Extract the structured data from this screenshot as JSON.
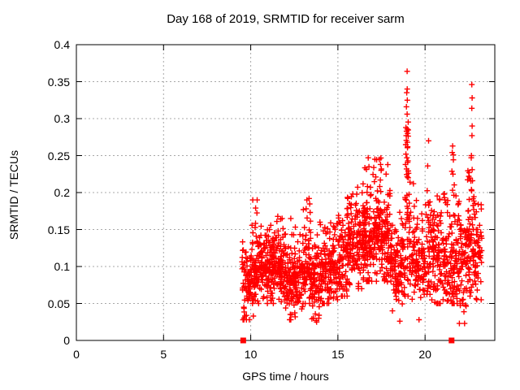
{
  "chart_data": {
    "type": "scatter",
    "title": "Day 168 of 2019, SRMTID for receiver sarm",
    "xlabel": "GPS time / hours",
    "ylabel": "SRMTID / TECUs",
    "xlim": [
      0,
      24
    ],
    "ylim": [
      0,
      0.4
    ],
    "xticks": [
      {
        "v": 0,
        "label": "0"
      },
      {
        "v": 5,
        "label": "5"
      },
      {
        "v": 10,
        "label": "10"
      },
      {
        "v": 15,
        "label": "15"
      },
      {
        "v": 20,
        "label": "20"
      }
    ],
    "yticks": [
      {
        "v": 0,
        "label": "0"
      },
      {
        "v": 0.05,
        "label": "0.05"
      },
      {
        "v": 0.1,
        "label": "0.1"
      },
      {
        "v": 0.15,
        "label": "0.15"
      },
      {
        "v": 0.2,
        "label": "0.2"
      },
      {
        "v": 0.25,
        "label": "0.25"
      },
      {
        "v": 0.3,
        "label": "0.3"
      },
      {
        "v": 0.35,
        "label": "0.35"
      },
      {
        "v": 0.4,
        "label": "0.4"
      }
    ],
    "grid": true,
    "legend_position": "none",
    "colors": {
      "marker": "#ff0000",
      "grid": "#a8a8a8",
      "axis": "#000000",
      "text": "#000000",
      "background": "#ffffff"
    },
    "marker": {
      "shape": "plus",
      "color": "#ff0000",
      "size": 7
    },
    "series": [
      {
        "name": "SRMTID",
        "marker": "plus",
        "color": "#ff0000",
        "representation": "density_bins",
        "note": "Dense scatter (~2000 pts) from 9.5h to 23.25h summarized as bins: [x_start, x_end, count, y_center, y_sigma, y_min, y_max]; distinctive extreme points listed explicitly in outliers.",
        "bins": [
          [
            9.5,
            10.0,
            70,
            0.082,
            0.027,
            0.028,
            0.15
          ],
          [
            10.0,
            10.5,
            80,
            0.1,
            0.027,
            0.05,
            0.19
          ],
          [
            10.5,
            11.0,
            80,
            0.1,
            0.025,
            0.05,
            0.165
          ],
          [
            11.0,
            11.5,
            80,
            0.095,
            0.024,
            0.05,
            0.16
          ],
          [
            11.5,
            12.0,
            80,
            0.093,
            0.025,
            0.045,
            0.17
          ],
          [
            12.0,
            12.5,
            75,
            0.085,
            0.024,
            0.028,
            0.15
          ],
          [
            12.5,
            13.0,
            75,
            0.085,
            0.025,
            0.025,
            0.155
          ],
          [
            13.0,
            13.5,
            75,
            0.098,
            0.028,
            0.05,
            0.2
          ],
          [
            13.5,
            14.0,
            70,
            0.085,
            0.027,
            0.025,
            0.16
          ],
          [
            14.0,
            14.5,
            70,
            0.093,
            0.025,
            0.05,
            0.165
          ],
          [
            14.5,
            15.0,
            70,
            0.1,
            0.025,
            0.055,
            0.17
          ],
          [
            15.0,
            15.5,
            70,
            0.11,
            0.027,
            0.06,
            0.19
          ],
          [
            15.5,
            16.0,
            75,
            0.118,
            0.029,
            0.06,
            0.21
          ],
          [
            16.0,
            16.5,
            80,
            0.13,
            0.03,
            0.07,
            0.22
          ],
          [
            16.5,
            17.0,
            85,
            0.14,
            0.032,
            0.08,
            0.24
          ],
          [
            17.0,
            17.5,
            85,
            0.145,
            0.032,
            0.08,
            0.25
          ],
          [
            17.5,
            18.0,
            80,
            0.135,
            0.033,
            0.07,
            0.24
          ],
          [
            18.0,
            18.5,
            70,
            0.105,
            0.03,
            0.04,
            0.19
          ],
          [
            18.5,
            18.85,
            50,
            0.1,
            0.03,
            0.026,
            0.18
          ],
          [
            18.85,
            19.15,
            55,
            0.165,
            0.065,
            0.06,
            0.34
          ],
          [
            19.15,
            19.6,
            55,
            0.11,
            0.032,
            0.04,
            0.21
          ],
          [
            19.6,
            20.0,
            50,
            0.1,
            0.033,
            0.028,
            0.19
          ],
          [
            20.0,
            20.5,
            65,
            0.12,
            0.038,
            0.05,
            0.24
          ],
          [
            20.5,
            21.0,
            65,
            0.115,
            0.035,
            0.05,
            0.21
          ],
          [
            21.0,
            21.5,
            65,
            0.113,
            0.038,
            0.04,
            0.23
          ],
          [
            21.5,
            21.9,
            60,
            0.12,
            0.045,
            0.05,
            0.255
          ],
          [
            21.9,
            22.4,
            65,
            0.1,
            0.035,
            0.023,
            0.19
          ],
          [
            22.4,
            22.8,
            70,
            0.14,
            0.045,
            0.06,
            0.25
          ],
          [
            22.8,
            23.25,
            55,
            0.115,
            0.035,
            0.055,
            0.2
          ]
        ],
        "outliers": [
          [
            18.97,
            0.364
          ],
          [
            18.95,
            0.335
          ],
          [
            18.98,
            0.325
          ],
          [
            18.93,
            0.316
          ],
          [
            18.97,
            0.306
          ],
          [
            18.9,
            0.288
          ],
          [
            18.95,
            0.283
          ],
          [
            19.0,
            0.28
          ],
          [
            18.92,
            0.277
          ],
          [
            18.98,
            0.268
          ],
          [
            19.0,
            0.262
          ],
          [
            18.9,
            0.252
          ],
          [
            18.96,
            0.247
          ],
          [
            19.02,
            0.243
          ],
          [
            18.88,
            0.238
          ],
          [
            18.94,
            0.232
          ],
          [
            19.05,
            0.226
          ],
          [
            22.68,
            0.346
          ],
          [
            22.7,
            0.328
          ],
          [
            22.68,
            0.314
          ],
          [
            22.7,
            0.29
          ],
          [
            22.69,
            0.277
          ],
          [
            22.65,
            0.247
          ],
          [
            22.7,
            0.231
          ],
          [
            22.72,
            0.216
          ],
          [
            22.66,
            0.204
          ],
          [
            20.2,
            0.27
          ],
          [
            20.15,
            0.236
          ],
          [
            21.58,
            0.263
          ],
          [
            21.62,
            0.251
          ],
          [
            21.6,
            0.225
          ],
          [
            16.74,
            0.247
          ],
          [
            16.78,
            0.235
          ],
          [
            17.38,
            0.245
          ],
          [
            17.45,
            0.238
          ],
          [
            15.85,
            0.198
          ],
          [
            13.22,
            0.19
          ],
          [
            13.18,
            0.178
          ],
          [
            10.37,
            0.19
          ],
          [
            10.28,
            0.179
          ],
          [
            19.33,
            0.212
          ],
          [
            12.3,
            0.165
          ],
          [
            11.8,
            0.165
          ],
          [
            12.3,
            0.028
          ],
          [
            12.55,
            0.032
          ],
          [
            13.75,
            0.027
          ],
          [
            13.9,
            0.03
          ],
          [
            18.55,
            0.026
          ],
          [
            19.65,
            0.028
          ],
          [
            21.97,
            0.023
          ],
          [
            10.15,
            0.033
          ]
        ]
      }
    ],
    "gap_markers": {
      "shape": "filled-square",
      "color": "#ff0000",
      "size": 7,
      "points": [
        [
          9.57,
          0
        ],
        [
          21.52,
          0
        ]
      ]
    }
  }
}
